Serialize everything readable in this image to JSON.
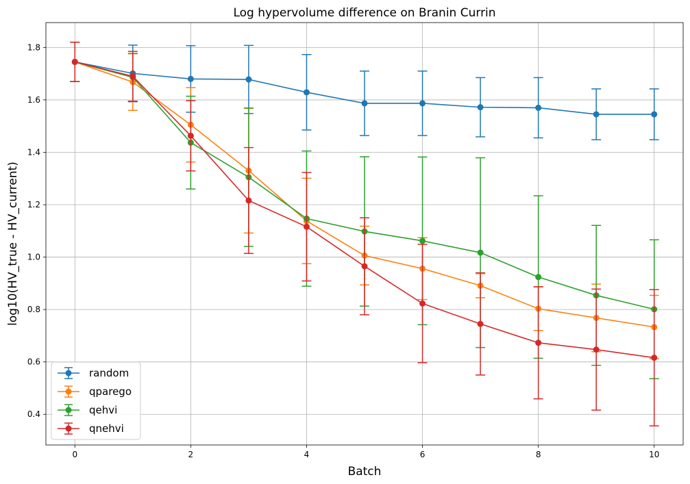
{
  "chart_data": {
    "type": "line",
    "title": "Log hypervolume difference on Branin Currin",
    "xlabel": "Batch",
    "ylabel": "log10(HV_true - HV_current)",
    "xlim": [
      -0.5,
      10.5
    ],
    "ylim": [
      0.283,
      1.895
    ],
    "xticks": [
      0,
      2,
      4,
      6,
      8,
      10
    ],
    "yticks": [
      0.4,
      0.6,
      0.8,
      1.0,
      1.2,
      1.4,
      1.6,
      1.8
    ],
    "ytick_labels": [
      "0.4",
      "0.6",
      "0.8",
      "1.0",
      "1.2",
      "1.4",
      "1.6",
      "1.8"
    ],
    "grid": true,
    "legend_position": "lower-left",
    "x": [
      0,
      1,
      2,
      3,
      4,
      5,
      6,
      7,
      8,
      9,
      10
    ],
    "series": [
      {
        "name": "random",
        "color": "#1f77b4",
        "values": [
          1.745,
          1.701,
          1.68,
          1.678,
          1.629,
          1.587,
          1.587,
          1.572,
          1.57,
          1.545,
          1.545
        ],
        "errors": [
          0.075,
          0.108,
          0.127,
          0.13,
          0.144,
          0.123,
          0.123,
          0.113,
          0.115,
          0.097,
          0.097
        ]
      },
      {
        "name": "qparego",
        "color": "#ff7f0e",
        "values": [
          1.745,
          1.668,
          1.505,
          1.33,
          1.138,
          1.006,
          0.956,
          0.891,
          0.803,
          0.768,
          0.733
        ],
        "errors": [
          0.075,
          0.108,
          0.142,
          0.238,
          0.163,
          0.112,
          0.118,
          0.046,
          0.083,
          0.129,
          0.121
        ]
      },
      {
        "name": "qehvi",
        "color": "#2ca02c",
        "values": [
          1.745,
          1.686,
          1.437,
          1.305,
          1.147,
          1.098,
          1.062,
          1.017,
          0.924,
          0.854,
          0.801
        ],
        "errors": [
          0.075,
          0.091,
          0.177,
          0.264,
          0.258,
          0.285,
          0.32,
          0.362,
          0.31,
          0.267,
          0.265
        ]
      },
      {
        "name": "qnehvi",
        "color": "#d62728",
        "values": [
          1.745,
          1.69,
          1.463,
          1.216,
          1.116,
          0.965,
          0.823,
          0.745,
          0.673,
          0.647,
          0.616
        ],
        "errors": [
          0.075,
          0.095,
          0.134,
          0.202,
          0.207,
          0.185,
          0.226,
          0.195,
          0.214,
          0.231,
          0.26
        ]
      }
    ]
  }
}
